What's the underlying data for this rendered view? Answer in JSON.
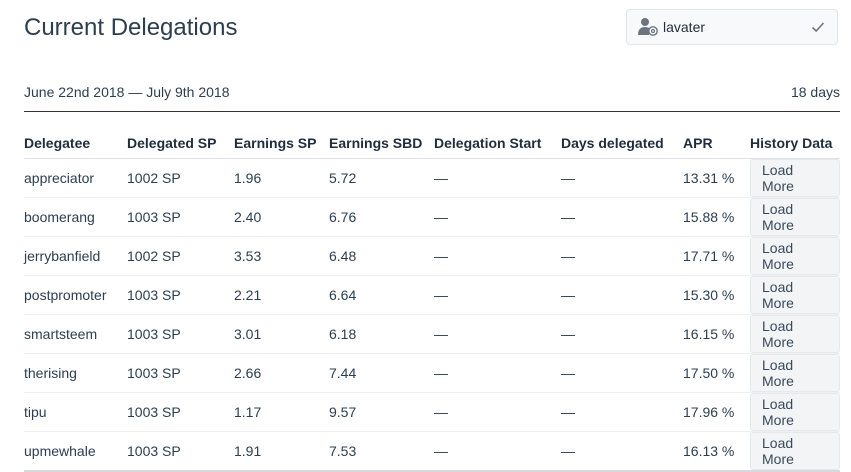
{
  "header": {
    "title": "Current Delegations"
  },
  "account": {
    "name": "lavater"
  },
  "range": {
    "dates": "June 22nd 2018 — July 9th 2018",
    "days": "18 days"
  },
  "table": {
    "columns": [
      "Delegatee",
      "Delegated SP",
      "Earnings SP",
      "Earnings SBD",
      "Delegation Start",
      "Days delegated",
      "APR",
      "History Data"
    ],
    "rows": [
      {
        "delegatee": "appreciator",
        "delegated": "1002 SP",
        "earn_sp": "1.96",
        "earn_sbd": "5.72",
        "start": "—",
        "days": "—",
        "apr": "13.31 %",
        "action": "Load More"
      },
      {
        "delegatee": "boomerang",
        "delegated": "1003 SP",
        "earn_sp": "2.40",
        "earn_sbd": "6.76",
        "start": "—",
        "days": "—",
        "apr": "15.88 %",
        "action": "Load More"
      },
      {
        "delegatee": "jerrybanfield",
        "delegated": "1002 SP",
        "earn_sp": "3.53",
        "earn_sbd": "6.48",
        "start": "—",
        "days": "—",
        "apr": "17.71 %",
        "action": "Load More"
      },
      {
        "delegatee": "postpromoter",
        "delegated": "1003 SP",
        "earn_sp": "2.21",
        "earn_sbd": "6.64",
        "start": "—",
        "days": "—",
        "apr": "15.30 %",
        "action": "Load More"
      },
      {
        "delegatee": "smartsteem",
        "delegated": "1003 SP",
        "earn_sp": "3.01",
        "earn_sbd": "6.18",
        "start": "—",
        "days": "—",
        "apr": "16.15 %",
        "action": "Load More"
      },
      {
        "delegatee": "therising",
        "delegated": "1003 SP",
        "earn_sp": "2.66",
        "earn_sbd": "7.44",
        "start": "—",
        "days": "—",
        "apr": "17.50 %",
        "action": "Load More"
      },
      {
        "delegatee": "tipu",
        "delegated": "1003 SP",
        "earn_sp": "1.17",
        "earn_sbd": "9.57",
        "start": "—",
        "days": "—",
        "apr": "17.96 %",
        "action": "Load More"
      },
      {
        "delegatee": "upmewhale",
        "delegated": "1003 SP",
        "earn_sp": "1.91",
        "earn_sbd": "7.53",
        "start": "—",
        "days": "—",
        "apr": "16.13 %",
        "action": "Load More"
      }
    ]
  }
}
